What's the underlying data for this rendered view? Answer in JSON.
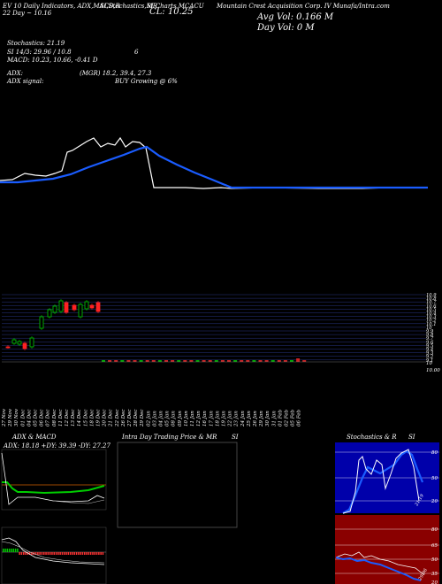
{
  "header": {
    "title_left": "EV 10 Daily Indicators, ADX,MACD,R",
    "title_mid1": "SI,Stochastics,MR",
    "title_mid2": "SI Charts MCACU",
    "title_right": "Mountain Crest Acquisition Corp. IV Munafa/Intra.com",
    "date_line": "22 Day ~ 10.16",
    "close_label": "CL: 10.25",
    "avg_vol_label": "Avg Vol: 0.166  M",
    "day_vol_label": "Day Vol: 0  M"
  },
  "indicators": {
    "stochastics": "Stochastics: 21.19",
    "si": "SI 14/3: 29.96 / 10.8",
    "si_right": "6",
    "macd": "MACD: 10.23,  10.66,  -0.41 D",
    "adx": "ADX:",
    "adx_mgr": "(MGR) 18.2,  39.4,  27.3",
    "adx_signal": "ADX  signal:",
    "buy_signal": "BUY Growing @ 6%"
  },
  "price_axis": {
    "labels": [
      "10.9",
      "10.8",
      "10.7",
      "10.6",
      "10.5",
      "10.4",
      "10.3",
      "10.2",
      "10.1",
      "10",
      "9.9",
      "9.8",
      "9.7",
      "9.6",
      "9.5",
      "9.4",
      "9.3",
      "9.2",
      "9.1"
    ],
    "volume_labels": [
      "10",
      "10.00"
    ]
  },
  "x_dates": [
    "27 Nov",
    "29 Nov",
    "30 Nov",
    "01 Dec",
    "04 Dec",
    "05 Dec",
    "06 Dec",
    "07 Dec",
    "08 Dec",
    "11 Dec",
    "12 Dec",
    "13 Dec",
    "14 Dec",
    "15 Dec",
    "18 Dec",
    "19 Dec",
    "20 Dec",
    "21 Dec",
    "22 Dec",
    "26 Dec",
    "27 Dec",
    "28 Dec",
    "29 Dec",
    "02 Jan",
    "03 Jan",
    "04 Jan",
    "05 Jan",
    "08 Jan",
    "09 Jan",
    "10 Jan",
    "11 Jan",
    "12 Jan",
    "16 Jan",
    "17 Jan",
    "18 Jan",
    "19 Jan",
    "22 Jan",
    "23 Jan",
    "24 Jan",
    "25 Jan",
    "26 Jan",
    "29 Jan",
    "30 Jan",
    "31 Jan",
    "01 Feb",
    "02 Feb",
    "05 Feb",
    "06 Feb"
  ],
  "panels": {
    "adx_title": "ADX  & MACD",
    "adx_values": "ADX: 18.18  +DY: 39.39  -DY: 27.27",
    "intraday_title": "Intra  Day Trading Price  & MR",
    "intraday_si": "SI",
    "stoch_title": "Stochastics & R",
    "stoch_si": "SI",
    "stoch_axis": [
      "80",
      "50",
      "20"
    ],
    "stoch_val": "21.19",
    "rsi_axis": [
      "80",
      "65",
      "50",
      "35",
      "20"
    ],
    "rsi_val": "29.96"
  },
  "colors": {
    "ma_line": "#1a5cff",
    "candle_up": "#00cc00",
    "candle_down": "#ff2222",
    "rsi_bg": "#8a0000",
    "stoch_bg": "#0000aa"
  }
}
